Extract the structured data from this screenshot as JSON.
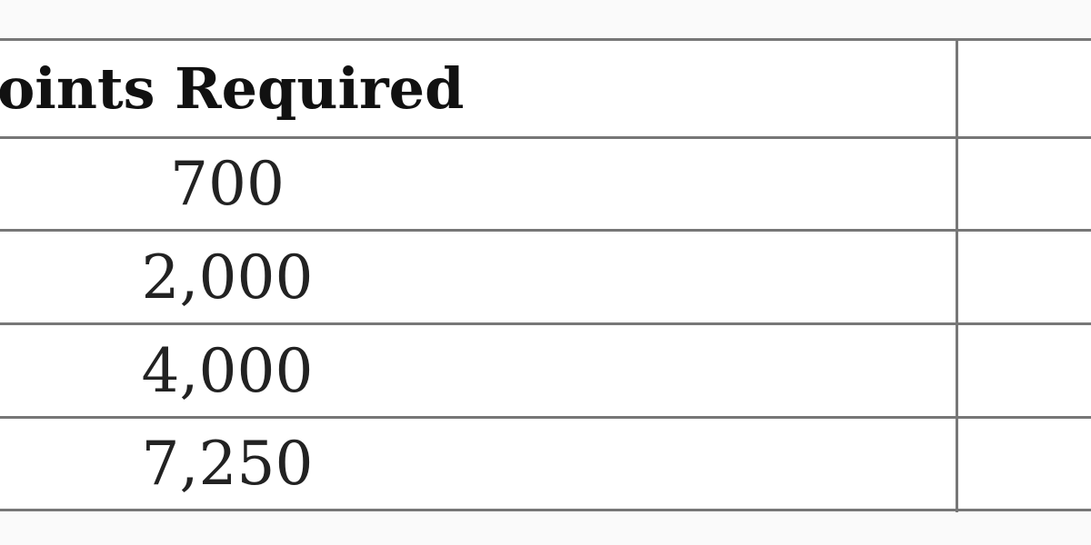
{
  "table": {
    "header": "Points Required",
    "rows": [
      "700",
      "2,000",
      "4,000",
      "7,250"
    ]
  }
}
